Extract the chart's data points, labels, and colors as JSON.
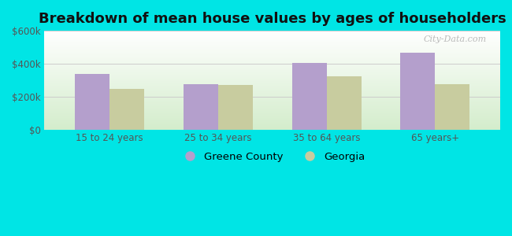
{
  "title": "Breakdown of mean house values by ages of householders",
  "categories": [
    "15 to 24 years",
    "25 to 34 years",
    "35 to 64 years",
    "65 years+"
  ],
  "greene_county": [
    335000,
    275000,
    405000,
    465000
  ],
  "georgia": [
    245000,
    270000,
    320000,
    275000
  ],
  "bar_color_greene": "#b49fcc",
  "bar_color_georgia": "#c8cc9f",
  "background_outer": "#00e5e5",
  "ylim": [
    0,
    600000
  ],
  "yticks": [
    0,
    200000,
    400000,
    600000
  ],
  "ytick_labels": [
    "$0",
    "$200k",
    "$400k",
    "$600k"
  ],
  "legend_greene": "Greene County",
  "legend_georgia": "Georgia",
  "title_fontsize": 13,
  "bar_width": 0.32,
  "watermark": "City-Data.com"
}
